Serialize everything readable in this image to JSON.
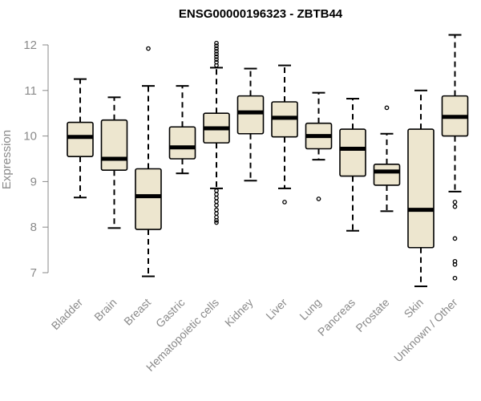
{
  "chart_data": {
    "type": "boxplot",
    "title": "ENSG00000196323 - ZBTB44",
    "xlabel": "",
    "ylabel": "Expression",
    "ylim": [
      6.75,
      12.2
    ],
    "yticks": [
      7,
      8,
      9,
      10,
      11,
      12
    ],
    "categories": [
      "Bladder",
      "Brain",
      "Breast",
      "Gastric",
      "Hematopoietic cells",
      "Kidney",
      "Liver",
      "Lung",
      "Pancreas",
      "Prostate",
      "Skin",
      "Unknown / Other"
    ],
    "boxes": [
      {
        "name": "Bladder",
        "whisker_low": 8.65,
        "q1": 9.55,
        "median": 9.98,
        "q3": 10.3,
        "whisker_high": 11.25,
        "outliers": []
      },
      {
        "name": "Brain",
        "whisker_low": 7.98,
        "q1": 9.25,
        "median": 9.5,
        "q3": 10.35,
        "whisker_high": 10.85,
        "outliers": []
      },
      {
        "name": "Breast",
        "whisker_low": 6.92,
        "q1": 7.95,
        "median": 8.68,
        "q3": 9.28,
        "whisker_high": 11.1,
        "outliers": [
          11.92
        ]
      },
      {
        "name": "Gastric",
        "whisker_low": 9.18,
        "q1": 9.5,
        "median": 9.75,
        "q3": 10.2,
        "whisker_high": 11.1,
        "outliers": []
      },
      {
        "name": "Hematopoietic cells",
        "whisker_low": 8.85,
        "q1": 9.85,
        "median": 10.17,
        "q3": 10.5,
        "whisker_high": 11.5,
        "outliers": [
          8.1,
          8.15,
          8.22,
          8.3,
          8.38,
          8.48,
          8.56,
          8.64,
          8.72,
          8.8,
          11.55,
          11.62,
          11.68,
          11.74,
          11.8,
          11.86,
          11.92,
          11.98,
          12.04
        ]
      },
      {
        "name": "Kidney",
        "whisker_low": 9.02,
        "q1": 10.05,
        "median": 10.52,
        "q3": 10.88,
        "whisker_high": 11.48,
        "outliers": []
      },
      {
        "name": "Liver",
        "whisker_low": 8.85,
        "q1": 9.98,
        "median": 10.4,
        "q3": 10.75,
        "whisker_high": 11.55,
        "outliers": [
          8.55
        ]
      },
      {
        "name": "Lung",
        "whisker_low": 9.48,
        "q1": 9.72,
        "median": 10.0,
        "q3": 10.28,
        "whisker_high": 10.95,
        "outliers": [
          8.62
        ]
      },
      {
        "name": "Pancreas",
        "whisker_low": 7.92,
        "q1": 9.12,
        "median": 9.72,
        "q3": 10.15,
        "whisker_high": 10.82,
        "outliers": []
      },
      {
        "name": "Prostate",
        "whisker_low": 8.35,
        "q1": 8.92,
        "median": 9.22,
        "q3": 9.38,
        "whisker_high": 10.05,
        "outliers": [
          10.62
        ]
      },
      {
        "name": "Skin",
        "whisker_low": 6.7,
        "q1": 7.55,
        "median": 8.38,
        "q3": 10.15,
        "whisker_high": 11.0,
        "outliers": []
      },
      {
        "name": "Unknown / Other",
        "whisker_low": 8.78,
        "q1": 10.0,
        "median": 10.42,
        "q3": 10.88,
        "whisker_high": 12.22,
        "outliers": [
          8.45,
          8.55,
          7.75,
          7.25,
          7.18,
          6.88
        ]
      }
    ],
    "box_fill": "#ede6cf",
    "box_stroke": "#000000",
    "axis_color": "#8a8a8a",
    "grid": false
  }
}
